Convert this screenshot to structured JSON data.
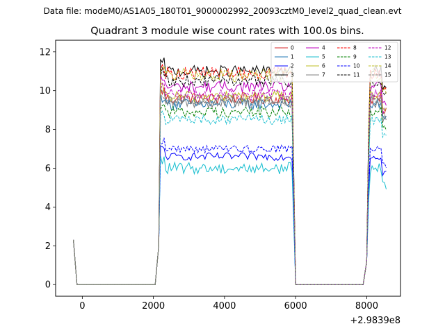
{
  "chart_data": {
    "type": "line",
    "suptitle": "Data file: modeM0/AS1A05_180T01_9000002992_20093cztM0_level2_quad_clean.evt",
    "title": "Quadrant 3 module wise count rates with 100.0s bins.",
    "xlabel": "",
    "ylabel": "",
    "x_offset_label": "+2.9839e8",
    "xlim": [
      -750,
      8950
    ],
    "ylim": [
      -0.6,
      12.6
    ],
    "xticks": [
      0,
      2000,
      4000,
      6000,
      8000
    ],
    "xtick_labels": [
      "0",
      "2000",
      "4000",
      "6000",
      "8000"
    ],
    "yticks": [
      0,
      2,
      4,
      6,
      8,
      10,
      12
    ],
    "ytick_labels": [
      "0",
      "2",
      "4",
      "6",
      "8",
      "10",
      "12"
    ],
    "grid": false,
    "legend_position": "top-right",
    "segments": [
      {
        "x_start": -250,
        "x_end": 2100,
        "on_from": null
      },
      {
        "x_start": 2100,
        "x_end": 5900,
        "on_from": 2200
      },
      {
        "x_start": 6000,
        "x_end": 7900,
        "on_from": null
      },
      {
        "x_start": 7900,
        "x_end": 8550,
        "on_from": 8100
      }
    ],
    "initial_value_at_x_-250": 2.3,
    "series": [
      {
        "name": "0",
        "color": "#d62728",
        "dash": "solid",
        "level": 9.6,
        "spread": 0.3
      },
      {
        "name": "1",
        "color": "#1f77b4",
        "dash": "solid",
        "level": 9.3,
        "spread": 0.3
      },
      {
        "name": "2",
        "color": "#0000ff",
        "dash": "solid",
        "level": 6.6,
        "spread": 0.2
      },
      {
        "name": "3",
        "color": "#000000",
        "dash": "solid",
        "level": 11.0,
        "spread": 0.3
      },
      {
        "name": "4",
        "color": "#bf00bf",
        "dash": "solid",
        "level": 10.2,
        "spread": 0.3
      },
      {
        "name": "5",
        "color": "#17becf",
        "dash": "solid",
        "level": 6.0,
        "spread": 0.3
      },
      {
        "name": "6",
        "color": "#bcbd22",
        "dash": "solid",
        "level": 9.7,
        "spread": 0.3
      },
      {
        "name": "7",
        "color": "#7f7f7f",
        "dash": "solid",
        "level": 9.4,
        "spread": 0.3
      },
      {
        "name": "8",
        "color": "#ff0000",
        "dash": "dashed",
        "level": 10.9,
        "spread": 0.35
      },
      {
        "name": "9",
        "color": "#008000",
        "dash": "dashed",
        "level": 8.9,
        "spread": 0.3
      },
      {
        "name": "10",
        "color": "#0000ff",
        "dash": "dashed",
        "level": 7.0,
        "spread": 0.2
      },
      {
        "name": "11",
        "color": "#000000",
        "dash": "dashed",
        "level": 10.5,
        "spread": 0.3
      },
      {
        "name": "12",
        "color": "#bf00bf",
        "dash": "dashed",
        "level": 9.8,
        "spread": 0.3
      },
      {
        "name": "13",
        "color": "#17becf",
        "dash": "dashed",
        "level": 8.5,
        "spread": 0.25
      },
      {
        "name": "14",
        "color": "#bcbd22",
        "dash": "dashed",
        "level": 10.8,
        "spread": 0.35
      },
      {
        "name": "15",
        "color": "#7f7f7f",
        "dash": "dashed",
        "level": 9.5,
        "spread": 0.3
      }
    ]
  }
}
